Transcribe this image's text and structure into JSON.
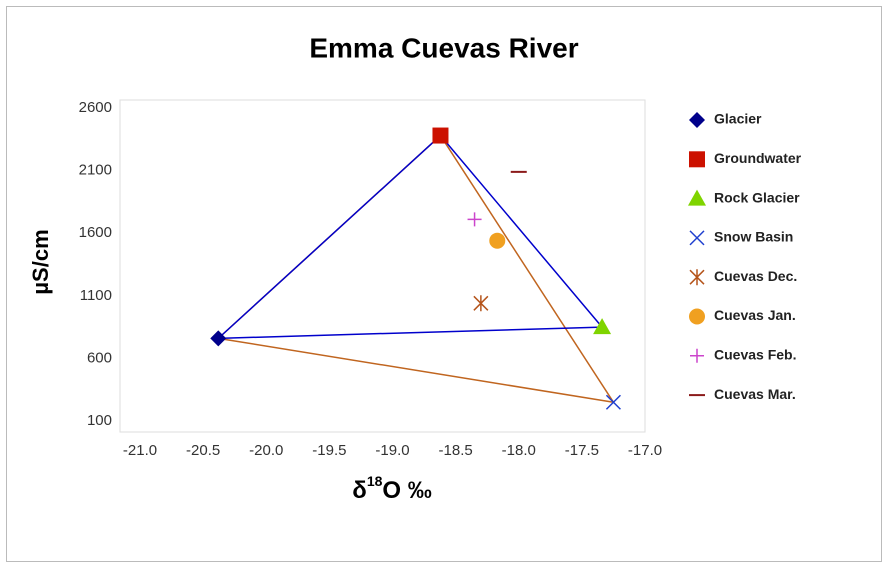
{
  "chart_data": {
    "type": "scatter",
    "title": "Emma Cuevas River",
    "y_label": "µS/cm",
    "x_label": {
      "base": "δ",
      "sup": "18",
      "rest": "O  ‰"
    },
    "xlim": [
      -21,
      -17
    ],
    "xticks": [
      {
        "value": -21,
        "label": "-21.0"
      },
      {
        "value": -20.5,
        "label": "-20.5"
      },
      {
        "value": -20,
        "label": "-20.0"
      },
      {
        "value": -19.5,
        "label": "-19.5"
      },
      {
        "value": -19,
        "label": "-19.0"
      },
      {
        "value": -18.5,
        "label": "-18.5"
      },
      {
        "value": -18,
        "label": "-18.0"
      },
      {
        "value": -17.5,
        "label": "-17.5"
      },
      {
        "value": -17,
        "label": "-17.0"
      }
    ],
    "ylim": [
      100,
      2600
    ],
    "yticks": [
      100,
      600,
      1100,
      1600,
      2100,
      2600
    ],
    "series": [
      {
        "name": "Glacier",
        "color": "#00008b",
        "marker": "diamond",
        "x": [
          -20.38
        ],
        "values": [
          760
        ]
      },
      {
        "name": "Groundwater",
        "color": "#cc1100",
        "marker": "square",
        "x": [
          -18.62
        ],
        "values": [
          2380
        ]
      },
      {
        "name": "Rock Glacier",
        "color": "#7fd400",
        "marker": "triangle",
        "x": [
          -17.34
        ],
        "values": [
          850
        ]
      },
      {
        "name": "Snow Basin",
        "color": "#1f3fcf",
        "marker": "x",
        "x": [
          -17.25
        ],
        "values": [
          250
        ]
      },
      {
        "name": "Cuevas Dec.",
        "color": "#b5541a",
        "marker": "asterisk",
        "x": [
          -18.3
        ],
        "values": [
          1040
        ]
      },
      {
        "name": "Cuevas Jan.",
        "color": "#f0a020",
        "marker": "circle",
        "x": [
          -18.17
        ],
        "values": [
          1540
        ]
      },
      {
        "name": "Cuevas Feb.",
        "color": "#cc44cc",
        "marker": "plus",
        "x": [
          -18.35
        ],
        "values": [
          1710
        ]
      },
      {
        "name": "Cuevas Mar.",
        "color": "#8b1a1a",
        "marker": "dash",
        "x": [
          -18.0
        ],
        "values": [
          2090
        ]
      }
    ]
  }
}
